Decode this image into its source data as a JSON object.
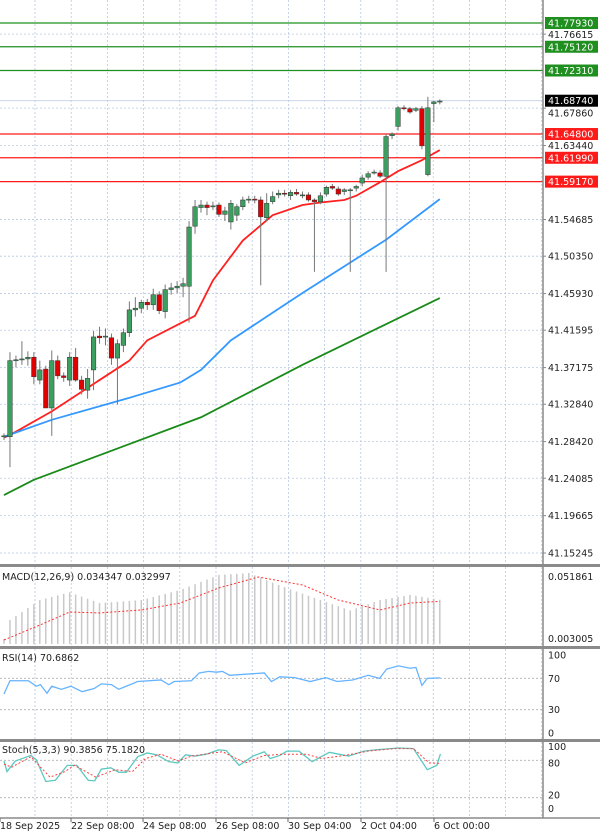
{
  "chart_data": {
    "type": "candlestick",
    "main": {
      "price_ticks": [
        "41.76615",
        "41.67860",
        "41.63440",
        "41.54685",
        "41.50350",
        "41.45930",
        "41.41595",
        "41.37175",
        "41.32840",
        "41.28420",
        "41.24085",
        "41.19665",
        "41.15245"
      ],
      "resistance_levels": [
        "41.77930",
        "41.75120",
        "41.72310"
      ],
      "support_levels": [
        "41.64800",
        "41.61990",
        "41.59170"
      ],
      "current_price": "41.68740",
      "colors": {
        "up": "#3c9e5f",
        "down": "#e00000",
        "resistance": "#1f8f1f",
        "support": "#ff1a1a",
        "ma_fast": "#ff2020",
        "ma_mid": "#3399ff",
        "ma_slow": "#1a8a1a",
        "grid": "#b8c8e0"
      },
      "ohlc": [
        [
          41.29,
          41.294,
          41.286,
          41.291
        ],
        [
          41.29,
          41.39,
          41.254,
          41.38
        ],
        [
          41.38,
          41.386,
          41.372,
          41.381
        ],
        [
          41.381,
          41.403,
          41.375,
          41.382
        ],
        [
          41.382,
          41.391,
          41.374,
          41.384
        ],
        [
          41.384,
          41.39,
          41.352,
          41.361
        ],
        [
          41.357,
          41.38,
          41.352,
          41.369
        ],
        [
          41.37,
          41.374,
          41.324,
          41.324
        ],
        [
          41.324,
          41.392,
          41.291,
          41.38
        ],
        [
          41.38,
          41.386,
          41.358,
          41.362
        ],
        [
          41.362,
          41.366,
          41.355,
          41.36
        ],
        [
          41.357,
          41.39,
          41.35,
          41.384
        ],
        [
          41.384,
          41.395,
          41.355,
          41.357
        ],
        [
          41.357,
          41.362,
          41.34,
          41.346
        ],
        [
          41.345,
          41.37,
          41.335,
          41.359
        ],
        [
          41.369,
          41.415,
          41.345,
          41.408
        ],
        [
          41.409,
          41.42,
          41.4,
          41.407
        ],
        [
          41.408,
          41.418,
          41.398,
          41.409
        ],
        [
          41.407,
          41.412,
          41.375,
          41.383
        ],
        [
          41.383,
          41.405,
          41.328,
          41.4
        ],
        [
          41.398,
          41.418,
          41.39,
          41.413
        ],
        [
          41.413,
          41.45,
          41.408,
          41.44
        ],
        [
          41.44,
          41.455,
          41.432,
          41.442
        ],
        [
          41.442,
          41.452,
          41.436,
          41.449
        ],
        [
          41.449,
          41.453,
          41.44,
          41.446
        ],
        [
          41.446,
          41.465,
          41.44,
          41.458
        ],
        [
          41.458,
          41.462,
          41.435,
          41.439
        ],
        [
          41.438,
          41.47,
          41.43,
          41.464
        ],
        [
          41.464,
          41.472,
          41.458,
          41.466
        ],
        [
          41.466,
          41.474,
          41.46,
          41.468
        ],
        [
          41.468,
          41.478,
          41.455,
          41.471
        ],
        [
          41.468,
          41.545,
          41.425,
          41.538
        ],
        [
          41.539,
          41.57,
          41.53,
          41.562
        ],
        [
          41.561,
          41.57,
          41.555,
          41.564
        ],
        [
          41.564,
          41.568,
          41.552,
          41.561
        ],
        [
          41.563,
          41.568,
          41.558,
          41.563
        ],
        [
          41.564,
          41.567,
          41.55,
          41.553
        ],
        [
          41.553,
          41.562,
          41.545,
          41.557
        ],
        [
          41.544,
          41.57,
          41.535,
          41.566
        ],
        [
          41.552,
          41.565,
          41.545,
          41.562
        ],
        [
          41.562,
          41.574,
          41.558,
          41.57
        ],
        [
          41.57,
          41.575,
          41.566,
          41.571
        ],
        [
          41.571,
          41.575,
          41.566,
          41.57
        ],
        [
          41.57,
          41.574,
          41.469,
          41.55
        ],
        [
          41.549,
          41.578,
          41.545,
          41.566
        ],
        [
          41.568,
          41.58,
          41.565,
          41.574
        ],
        [
          41.576,
          41.582,
          41.572,
          41.578
        ],
        [
          41.578,
          41.582,
          41.574,
          41.577
        ],
        [
          41.575,
          41.582,
          41.57,
          41.579
        ],
        [
          41.579,
          41.583,
          41.575,
          41.577
        ],
        [
          41.576,
          41.58,
          41.572,
          41.576
        ],
        [
          41.576,
          41.579,
          41.568,
          41.57
        ],
        [
          41.57,
          41.572,
          41.485,
          41.568
        ],
        [
          41.568,
          41.579,
          41.565,
          41.575
        ],
        [
          41.577,
          41.587,
          41.574,
          41.585
        ],
        [
          41.586,
          41.589,
          41.582,
          41.584
        ],
        [
          41.583,
          41.586,
          41.575,
          41.577
        ],
        [
          41.58,
          41.584,
          41.576,
          41.582
        ],
        [
          41.581,
          41.584,
          41.485,
          41.582
        ],
        [
          41.584,
          41.588,
          41.58,
          41.586
        ],
        [
          41.59,
          41.6,
          41.586,
          41.596
        ],
        [
          41.597,
          41.604,
          41.594,
          41.601
        ],
        [
          41.602,
          41.606,
          41.6,
          41.603
        ],
        [
          41.602,
          41.605,
          41.596,
          41.598
        ],
        [
          41.598,
          41.648,
          41.485,
          41.645
        ],
        [
          41.646,
          41.65,
          41.642,
          41.648
        ],
        [
          41.657,
          41.681,
          41.652,
          41.679
        ],
        [
          41.679,
          41.682,
          41.676,
          41.678
        ],
        [
          41.678,
          41.68,
          41.672,
          41.674
        ],
        [
          41.676,
          41.68,
          41.674,
          41.678
        ],
        [
          41.678,
          41.681,
          41.63,
          41.634
        ],
        [
          41.6,
          41.692,
          41.598,
          41.679
        ],
        [
          41.684,
          41.687,
          41.662,
          41.686
        ],
        [
          41.686,
          41.689,
          41.683,
          41.687
        ]
      ],
      "ohlc_order": "open,high,low,close",
      "moving_averages": [
        {
          "name": "ma_fast",
          "points": [
            [
              0,
              41.289
            ],
            [
              1,
              41.292
            ],
            [
              8,
              41.32
            ],
            [
              16,
              41.357
            ],
            [
              21,
              41.38
            ],
            [
              24,
              41.404
            ],
            [
              32,
              41.433
            ],
            [
              35,
              41.475
            ],
            [
              40,
              41.522
            ],
            [
              45,
              41.552
            ],
            [
              50,
              41.564
            ],
            [
              53,
              41.567
            ],
            [
              57,
              41.57
            ],
            [
              59,
              41.575
            ],
            [
              63,
              41.591
            ],
            [
              66,
              41.604
            ],
            [
              70,
              41.617
            ],
            [
              73,
              41.629
            ]
          ]
        },
        {
          "name": "ma_mid",
          "points": [
            [
              0,
              41.29
            ],
            [
              8,
              41.31
            ],
            [
              21,
              41.336
            ],
            [
              29.5,
              41.354
            ],
            [
              33,
              41.369
            ],
            [
              38,
              41.404
            ],
            [
              44,
              41.432
            ],
            [
              50,
              41.46
            ],
            [
              64,
              41.523
            ],
            [
              73,
              41.571
            ]
          ]
        },
        {
          "name": "ma_slow",
          "points": [
            [
              0,
              41.221
            ],
            [
              5,
              41.239
            ],
            [
              33,
              41.313
            ],
            [
              50,
              41.375
            ],
            [
              73,
              41.454
            ]
          ]
        }
      ]
    },
    "macd": {
      "title": "MACD(12,26,9) 0.034347 0.032997",
      "axis_labels": [
        "0.051861",
        "0.003005"
      ],
      "histogram": [
        [
          0,
          0.004
        ],
        [
          1,
          0.0185
        ],
        [
          6,
          0.034
        ],
        [
          11,
          0.04
        ],
        [
          16,
          0.0317
        ],
        [
          23,
          0.034
        ],
        [
          29.5,
          0.0418
        ],
        [
          36,
          0.0535
        ],
        [
          41,
          0.055
        ],
        [
          46,
          0.0457
        ],
        [
          53,
          0.034
        ],
        [
          58,
          0.026
        ],
        [
          63,
          0.034
        ],
        [
          68,
          0.038
        ],
        [
          73,
          0.0343
        ]
      ],
      "signal": [
        [
          0,
          0.003
        ],
        [
          6,
          0.0146
        ],
        [
          11,
          0.0247
        ],
        [
          16,
          0.024
        ],
        [
          23,
          0.0263
        ],
        [
          29.5,
          0.0317
        ],
        [
          36,
          0.0434
        ],
        [
          42.6,
          0.0519
        ],
        [
          50,
          0.0457
        ],
        [
          56,
          0.034
        ],
        [
          63,
          0.0263
        ],
        [
          68,
          0.0317
        ],
        [
          73,
          0.033
        ]
      ]
    },
    "rsi": {
      "title": "RSI(14) 70.6862",
      "axis_labels": [
        "100",
        "70",
        "30",
        "0"
      ],
      "line": [
        [
          0,
          50
        ],
        [
          1,
          67
        ],
        [
          4.1,
          67
        ],
        [
          5.4,
          60
        ],
        [
          6.1,
          62
        ],
        [
          7.2,
          51
        ],
        [
          8,
          60
        ],
        [
          9.6,
          56
        ],
        [
          11.2,
          60
        ],
        [
          13.1,
          53
        ],
        [
          15.1,
          57
        ],
        [
          16.3,
          63
        ],
        [
          18,
          62
        ],
        [
          19.2,
          56
        ],
        [
          22.4,
          66
        ],
        [
          26.3,
          68
        ],
        [
          27.6,
          62
        ],
        [
          28.5,
          66
        ],
        [
          31.4,
          67
        ],
        [
          32.7,
          77
        ],
        [
          34.3,
          79
        ],
        [
          35.6,
          78
        ],
        [
          36.6,
          79
        ],
        [
          37.8,
          74
        ],
        [
          43.6,
          77
        ],
        [
          44.8,
          66
        ],
        [
          46.2,
          72
        ],
        [
          48.7,
          71
        ],
        [
          51.3,
          66
        ],
        [
          53.9,
          71
        ],
        [
          55.8,
          66
        ],
        [
          58.4,
          68
        ],
        [
          61,
          74
        ],
        [
          62.9,
          70
        ],
        [
          64.1,
          82
        ],
        [
          66.1,
          86
        ],
        [
          68,
          83
        ],
        [
          69,
          84
        ],
        [
          70,
          61
        ],
        [
          70.9,
          70
        ],
        [
          73.1,
          70.69
        ]
      ]
    },
    "stoch": {
      "title": "Stoch(5,3,3) 90.3856 75.1820",
      "axis_labels": [
        "100",
        "80",
        "20",
        "0"
      ],
      "main": [
        [
          0,
          79
        ],
        [
          0.5,
          62
        ],
        [
          1.9,
          79
        ],
        [
          4.5,
          88
        ],
        [
          5.4,
          81
        ],
        [
          7,
          46
        ],
        [
          8.6,
          48
        ],
        [
          10.6,
          72
        ],
        [
          12.2,
          72
        ],
        [
          14.1,
          48
        ],
        [
          15.2,
          47
        ],
        [
          16.3,
          66
        ],
        [
          17.9,
          68
        ],
        [
          19.2,
          61
        ],
        [
          20.5,
          61
        ],
        [
          22.4,
          86
        ],
        [
          24,
          92
        ],
        [
          25.6,
          89
        ],
        [
          27.6,
          78
        ],
        [
          29.1,
          76
        ],
        [
          30.4,
          89
        ],
        [
          32,
          87
        ],
        [
          33.9,
          90
        ],
        [
          35.9,
          97
        ],
        [
          37.2,
          96
        ],
        [
          39.4,
          72
        ],
        [
          41.7,
          87
        ],
        [
          43.6,
          94
        ],
        [
          44.6,
          83
        ],
        [
          46.2,
          88
        ],
        [
          47.4,
          95
        ],
        [
          49.4,
          95
        ],
        [
          51.6,
          78
        ],
        [
          54.5,
          93
        ],
        [
          57.7,
          87
        ],
        [
          60.3,
          95
        ],
        [
          62.2,
          97
        ],
        [
          66.1,
          100
        ],
        [
          68.6,
          99
        ],
        [
          70.9,
          65
        ],
        [
          72.5,
          72
        ],
        [
          73.1,
          90.39
        ]
      ],
      "signal": [
        [
          0,
          74
        ],
        [
          1.3,
          69
        ],
        [
          4.5,
          86
        ],
        [
          7.7,
          53
        ],
        [
          10.2,
          62
        ],
        [
          11.8,
          72
        ],
        [
          15.4,
          53
        ],
        [
          18.6,
          65
        ],
        [
          21.5,
          62
        ],
        [
          23.7,
          83
        ],
        [
          26.3,
          90
        ],
        [
          29.2,
          79
        ],
        [
          31.4,
          87
        ],
        [
          36.6,
          94
        ],
        [
          40.4,
          76
        ],
        [
          43.6,
          88
        ],
        [
          46.8,
          90
        ],
        [
          50.7,
          90
        ],
        [
          53.2,
          83
        ],
        [
          57.1,
          88
        ],
        [
          61,
          95
        ],
        [
          65.4,
          99
        ],
        [
          68.6,
          99
        ],
        [
          71.2,
          76
        ],
        [
          73.1,
          75.18
        ]
      ]
    },
    "x_labels": [
      "18 Sep 2025",
      "22 Sep 08:00",
      "24 Sep 08:00",
      "26 Sep 08:00",
      "30 Sep 04:00",
      "2 Oct 04:00",
      "6 Oct 00:00"
    ]
  }
}
